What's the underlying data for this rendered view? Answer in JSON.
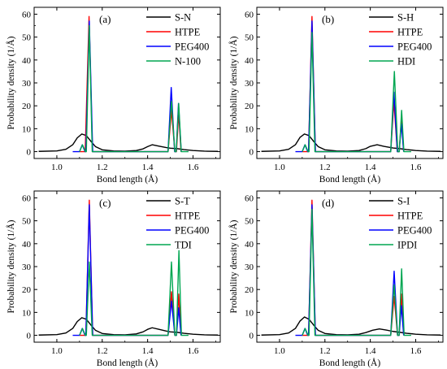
{
  "chart_data": [
    {
      "type": "line",
      "panel_label": "(a)",
      "xlabel": "Bond length (Å)",
      "ylabel": "Probability density (1/Å)",
      "xlim": [
        0.9,
        1.72
      ],
      "ylim": [
        -3,
        63
      ],
      "xticks": [
        "1.0",
        "1.2",
        "1.4",
        "1.6"
      ],
      "yticks": [
        "0",
        "10",
        "20",
        "30",
        "40",
        "50",
        "60"
      ],
      "legend_position": "top-right",
      "series": [
        {
          "name": "S-N",
          "color": "#000000",
          "points": [
            [
              0.92,
              0.1
            ],
            [
              1.0,
              0.3
            ],
            [
              1.04,
              1.0
            ],
            [
              1.07,
              3.0
            ],
            [
              1.09,
              6.0
            ],
            [
              1.11,
              7.7
            ],
            [
              1.13,
              7.0
            ],
            [
              1.15,
              4.5
            ],
            [
              1.17,
              2.2
            ],
            [
              1.2,
              0.8
            ],
            [
              1.25,
              0.3
            ],
            [
              1.3,
              0.2
            ],
            [
              1.35,
              0.5
            ],
            [
              1.38,
              1.2
            ],
            [
              1.4,
              2.2
            ],
            [
              1.42,
              3.0
            ],
            [
              1.45,
              2.4
            ],
            [
              1.48,
              1.8
            ],
            [
              1.5,
              1.5
            ],
            [
              1.53,
              1.3
            ],
            [
              1.56,
              0.9
            ],
            [
              1.6,
              0.5
            ],
            [
              1.65,
              0.2
            ],
            [
              1.71,
              0.1
            ]
          ]
        },
        {
          "name": "HTPE",
          "color": "#ff0000",
          "points": [
            [
              1.1,
              0
            ],
            [
              1.125,
              0
            ],
            [
              1.142,
              59
            ],
            [
              1.157,
              0
            ],
            [
              1.49,
              0
            ],
            [
              1.505,
              18
            ],
            [
              1.52,
              0
            ],
            [
              1.527,
              0
            ],
            [
              1.537,
              17
            ],
            [
              1.547,
              0
            ]
          ]
        },
        {
          "name": "PEG400",
          "color": "#0000ff",
          "points": [
            [
              1.07,
              0
            ],
            [
              1.1,
              0
            ],
            [
              1.112,
              3
            ],
            [
              1.124,
              0
            ],
            [
              1.128,
              0
            ],
            [
              1.143,
              57
            ],
            [
              1.158,
              0
            ],
            [
              1.49,
              0
            ],
            [
              1.504,
              28
            ],
            [
              1.519,
              0
            ],
            [
              1.526,
              0
            ],
            [
              1.536,
              21
            ],
            [
              1.548,
              0
            ]
          ]
        },
        {
          "name": "N-100",
          "color": "#00a651",
          "points": [
            [
              1.1,
              0
            ],
            [
              1.113,
              3
            ],
            [
              1.126,
              0
            ],
            [
              1.13,
              0
            ],
            [
              1.143,
              55
            ],
            [
              1.156,
              0
            ],
            [
              1.49,
              0
            ],
            [
              1.505,
              22
            ],
            [
              1.52,
              0
            ],
            [
              1.526,
              0
            ],
            [
              1.537,
              21
            ],
            [
              1.548,
              0
            ],
            [
              1.58,
              0
            ]
          ]
        }
      ]
    },
    {
      "type": "line",
      "panel_label": "(b)",
      "xlabel": "Bond length (Å)",
      "ylabel": "Probability density (1/Å)",
      "xlim": [
        0.9,
        1.72
      ],
      "ylim": [
        -3,
        63
      ],
      "xticks": [
        "1.0",
        "1.2",
        "1.4",
        "1.6"
      ],
      "yticks": [
        "0",
        "10",
        "20",
        "30",
        "40",
        "50",
        "60"
      ],
      "legend_position": "top-right",
      "series": [
        {
          "name": "S-H",
          "color": "#000000",
          "points": [
            [
              0.92,
              0.1
            ],
            [
              1.0,
              0.3
            ],
            [
              1.04,
              1.0
            ],
            [
              1.07,
              3.0
            ],
            [
              1.09,
              6.2
            ],
            [
              1.11,
              7.7
            ],
            [
              1.13,
              7.0
            ],
            [
              1.15,
              4.5
            ],
            [
              1.17,
              2.2
            ],
            [
              1.2,
              0.8
            ],
            [
              1.25,
              0.3
            ],
            [
              1.3,
              0.2
            ],
            [
              1.35,
              0.5
            ],
            [
              1.38,
              1.3
            ],
            [
              1.4,
              2.3
            ],
            [
              1.43,
              3.0
            ],
            [
              1.46,
              2.3
            ],
            [
              1.5,
              1.6
            ],
            [
              1.53,
              1.3
            ],
            [
              1.56,
              0.9
            ],
            [
              1.6,
              0.5
            ],
            [
              1.65,
              0.2
            ],
            [
              1.71,
              0.1
            ]
          ]
        },
        {
          "name": "HTPE",
          "color": "#ff0000",
          "points": [
            [
              1.1,
              0
            ],
            [
              1.128,
              0
            ],
            [
              1.143,
              59
            ],
            [
              1.158,
              0
            ],
            [
              1.49,
              0
            ],
            [
              1.504,
              22
            ],
            [
              1.519,
              0
            ],
            [
              1.527,
              0
            ],
            [
              1.537,
              14
            ],
            [
              1.547,
              0
            ]
          ]
        },
        {
          "name": "PEG400",
          "color": "#0000ff",
          "points": [
            [
              1.07,
              0
            ],
            [
              1.1,
              0
            ],
            [
              1.112,
              3
            ],
            [
              1.124,
              0
            ],
            [
              1.128,
              0
            ],
            [
              1.143,
              57
            ],
            [
              1.158,
              0
            ],
            [
              1.49,
              0
            ],
            [
              1.504,
              26
            ],
            [
              1.519,
              0
            ],
            [
              1.527,
              0
            ],
            [
              1.537,
              12
            ],
            [
              1.547,
              0
            ]
          ]
        },
        {
          "name": "HDI",
          "color": "#00a651",
          "points": [
            [
              1.1,
              0
            ],
            [
              1.113,
              3
            ],
            [
              1.126,
              0
            ],
            [
              1.13,
              0
            ],
            [
              1.143,
              52
            ],
            [
              1.156,
              0
            ],
            [
              1.49,
              0
            ],
            [
              1.506,
              35
            ],
            [
              1.521,
              0
            ],
            [
              1.528,
              0
            ],
            [
              1.538,
              18
            ],
            [
              1.548,
              0
            ],
            [
              1.58,
              0
            ]
          ]
        }
      ]
    },
    {
      "type": "line",
      "panel_label": "(c)",
      "xlabel": "Bond length (Å)",
      "ylabel": "Probability density (1/Å)",
      "xlim": [
        0.9,
        1.72
      ],
      "ylim": [
        -3,
        63
      ],
      "xticks": [
        "1.0",
        "1.2",
        "1.4",
        "1.6"
      ],
      "yticks": [
        "0",
        "10",
        "20",
        "30",
        "40",
        "50",
        "60"
      ],
      "legend_position": "top-right",
      "series": [
        {
          "name": "S-T",
          "color": "#000000",
          "points": [
            [
              0.92,
              0.1
            ],
            [
              1.0,
              0.3
            ],
            [
              1.04,
              1.0
            ],
            [
              1.07,
              3.0
            ],
            [
              1.09,
              6.0
            ],
            [
              1.11,
              7.7
            ],
            [
              1.13,
              7.0
            ],
            [
              1.15,
              4.5
            ],
            [
              1.17,
              2.2
            ],
            [
              1.2,
              0.8
            ],
            [
              1.25,
              0.3
            ],
            [
              1.3,
              0.2
            ],
            [
              1.35,
              0.6
            ],
            [
              1.38,
              1.5
            ],
            [
              1.4,
              2.6
            ],
            [
              1.42,
              3.3
            ],
            [
              1.45,
              2.6
            ],
            [
              1.48,
              1.9
            ],
            [
              1.5,
              1.5
            ],
            [
              1.53,
              1.3
            ],
            [
              1.56,
              0.9
            ],
            [
              1.6,
              0.5
            ],
            [
              1.65,
              0.2
            ],
            [
              1.71,
              0.1
            ]
          ]
        },
        {
          "name": "HTPE",
          "color": "#ff0000",
          "points": [
            [
              1.1,
              0
            ],
            [
              1.128,
              0
            ],
            [
              1.143,
              59
            ],
            [
              1.158,
              0
            ],
            [
              1.49,
              0
            ],
            [
              1.505,
              19
            ],
            [
              1.52,
              0
            ],
            [
              1.527,
              0
            ],
            [
              1.537,
              18
            ],
            [
              1.547,
              0
            ]
          ]
        },
        {
          "name": "PEG400",
          "color": "#0000ff",
          "points": [
            [
              1.07,
              0
            ],
            [
              1.1,
              0
            ],
            [
              1.112,
              3
            ],
            [
              1.124,
              0
            ],
            [
              1.128,
              0
            ],
            [
              1.143,
              57
            ],
            [
              1.158,
              0
            ],
            [
              1.49,
              0
            ],
            [
              1.505,
              15
            ],
            [
              1.52,
              0
            ],
            [
              1.527,
              0
            ],
            [
              1.537,
              12
            ],
            [
              1.547,
              0
            ]
          ]
        },
        {
          "name": "TDI",
          "color": "#00a651",
          "points": [
            [
              1.1,
              0
            ],
            [
              1.113,
              3
            ],
            [
              1.126,
              0
            ],
            [
              1.13,
              0
            ],
            [
              1.143,
              32
            ],
            [
              1.156,
              0
            ],
            [
              1.49,
              0
            ],
            [
              1.505,
              32
            ],
            [
              1.52,
              0
            ],
            [
              1.527,
              0
            ],
            [
              1.538,
              37
            ],
            [
              1.549,
              0
            ],
            [
              1.58,
              0
            ]
          ]
        }
      ]
    },
    {
      "type": "line",
      "panel_label": "(d)",
      "xlabel": "Bond length (Å)",
      "ylabel": "Probability density (1/Å)",
      "xlim": [
        0.9,
        1.72
      ],
      "ylim": [
        -3,
        63
      ],
      "xticks": [
        "1.0",
        "1.2",
        "1.4",
        "1.6"
      ],
      "yticks": [
        "0",
        "10",
        "20",
        "30",
        "40",
        "50",
        "60"
      ],
      "legend_position": "top-right",
      "series": [
        {
          "name": "S-I",
          "color": "#000000",
          "points": [
            [
              0.92,
              0.1
            ],
            [
              1.0,
              0.3
            ],
            [
              1.04,
              1.0
            ],
            [
              1.07,
              3.0
            ],
            [
              1.09,
              6.2
            ],
            [
              1.11,
              8.0
            ],
            [
              1.13,
              7.0
            ],
            [
              1.15,
              4.5
            ],
            [
              1.17,
              2.2
            ],
            [
              1.2,
              0.8
            ],
            [
              1.25,
              0.3
            ],
            [
              1.3,
              0.2
            ],
            [
              1.35,
              0.5
            ],
            [
              1.38,
              1.2
            ],
            [
              1.41,
              2.2
            ],
            [
              1.44,
              2.8
            ],
            [
              1.47,
              2.3
            ],
            [
              1.5,
              1.7
            ],
            [
              1.53,
              1.3
            ],
            [
              1.56,
              0.9
            ],
            [
              1.6,
              0.5
            ],
            [
              1.65,
              0.2
            ],
            [
              1.71,
              0.1
            ]
          ]
        },
        {
          "name": "HTPE",
          "color": "#ff0000",
          "points": [
            [
              1.1,
              0
            ],
            [
              1.128,
              0
            ],
            [
              1.143,
              59
            ],
            [
              1.158,
              0
            ],
            [
              1.49,
              0
            ],
            [
              1.505,
              17
            ],
            [
              1.52,
              0
            ],
            [
              1.527,
              0
            ],
            [
              1.537,
              18
            ],
            [
              1.547,
              0
            ]
          ]
        },
        {
          "name": "PEG400",
          "color": "#0000ff",
          "points": [
            [
              1.07,
              0
            ],
            [
              1.1,
              0
            ],
            [
              1.112,
              3
            ],
            [
              1.124,
              0
            ],
            [
              1.128,
              0
            ],
            [
              1.143,
              57
            ],
            [
              1.158,
              0
            ],
            [
              1.49,
              0
            ],
            [
              1.505,
              28
            ],
            [
              1.52,
              0
            ],
            [
              1.527,
              0
            ],
            [
              1.537,
              13
            ],
            [
              1.547,
              0
            ]
          ]
        },
        {
          "name": "IPDI",
          "color": "#00a651",
          "points": [
            [
              1.1,
              0
            ],
            [
              1.113,
              3
            ],
            [
              1.126,
              0
            ],
            [
              1.13,
              0
            ],
            [
              1.143,
              55
            ],
            [
              1.156,
              0
            ],
            [
              1.49,
              0
            ],
            [
              1.505,
              22
            ],
            [
              1.52,
              0
            ],
            [
              1.527,
              0
            ],
            [
              1.538,
              29
            ],
            [
              1.549,
              0
            ],
            [
              1.58,
              0
            ]
          ]
        }
      ]
    }
  ]
}
